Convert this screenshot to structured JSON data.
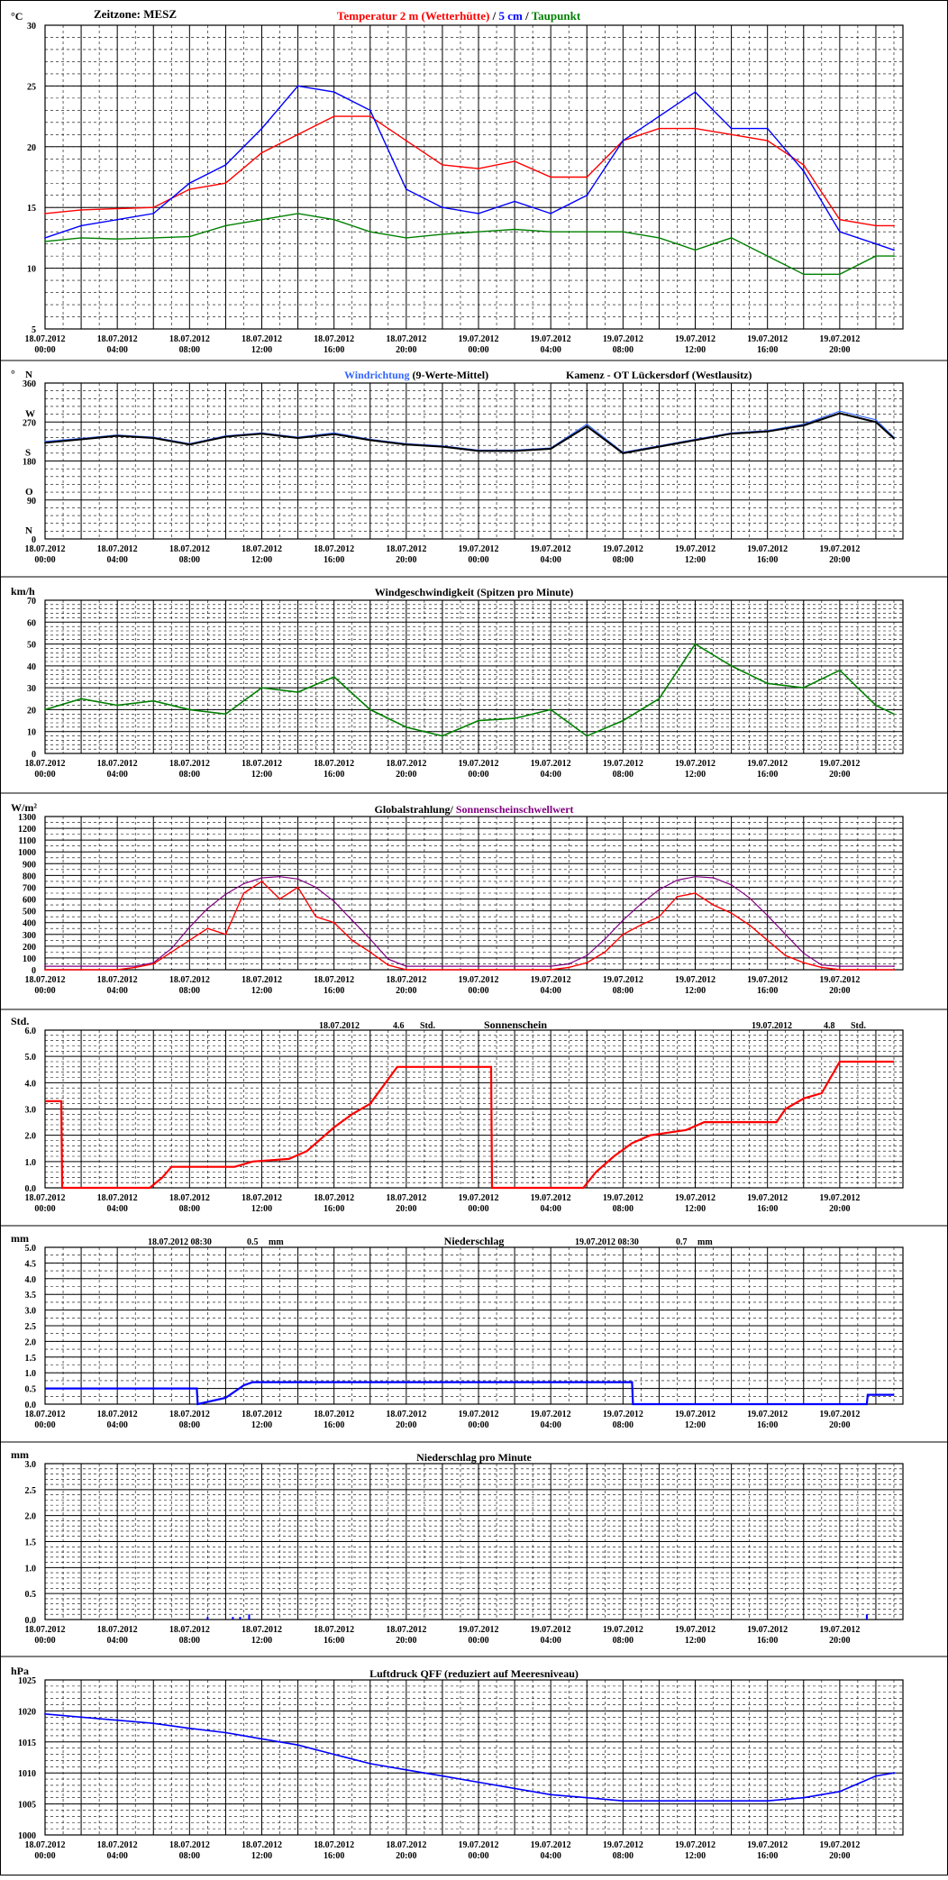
{
  "xticks": [
    [
      "18.07.2012",
      "00:00"
    ],
    [
      "18.07.2012",
      "04:00"
    ],
    [
      "18.07.2012",
      "08:00"
    ],
    [
      "18.07.2012",
      "12:00"
    ],
    [
      "18.07.2012",
      "16:00"
    ],
    [
      "18.07.2012",
      "20:00"
    ],
    [
      "19.07.2012",
      "00:00"
    ],
    [
      "19.07.2012",
      "04:00"
    ],
    [
      "19.07.2012",
      "08:00"
    ],
    [
      "19.07.2012",
      "12:00"
    ],
    [
      "19.07.2012",
      "16:00"
    ],
    [
      "19.07.2012",
      "20:00"
    ]
  ],
  "colors": {
    "temp": "#ff0000",
    "soil": "#0000ff",
    "dew": "#008000",
    "winddir": "#3366ff",
    "winddir_mean": "#000000",
    "wind": "#008000",
    "rad": "#ff0000",
    "threshold": "#800080",
    "sun": "#ff0000",
    "rain": "#0000ff",
    "pressure": "#0000ff"
  },
  "chart_data": [
    {
      "id": "temperature",
      "type": "line",
      "ylabel": "°C",
      "ylim": [
        5,
        30
      ],
      "yticks": [
        "5",
        "10",
        "15",
        "20",
        "25",
        "30"
      ],
      "header": {
        "zone": "Zeitzone: MESZ",
        "s1": "Temperatur 2 m (Wetterhütte)",
        "sep1": " / ",
        "s2": "5 cm",
        "sep2": " / ",
        "s3": "Taupunkt"
      },
      "x_hours": [
        0,
        2,
        4,
        6,
        8,
        10,
        12,
        14,
        16,
        18,
        20,
        22,
        24,
        26,
        28,
        30,
        32,
        34,
        36,
        38,
        40,
        42,
        44,
        46,
        47
      ],
      "series": [
        {
          "name": "Temperatur 2 m (Wetterhütte)",
          "values": [
            14.5,
            14.8,
            14.9,
            15.0,
            16.5,
            17.0,
            19.5,
            21.0,
            22.5,
            22.5,
            20.5,
            18.5,
            18.2,
            18.8,
            17.5,
            17.5,
            20.5,
            21.5,
            21.5,
            21.0,
            20.5,
            18.5,
            14.0,
            13.5,
            13.5
          ]
        },
        {
          "name": "5 cm",
          "values": [
            12.5,
            13.5,
            14.0,
            14.5,
            17.0,
            18.5,
            21.5,
            25.0,
            24.5,
            23.0,
            16.5,
            15.0,
            14.5,
            15.5,
            14.5,
            16.0,
            20.5,
            22.5,
            24.5,
            21.5,
            21.5,
            18.0,
            13.0,
            12.0,
            11.5
          ]
        },
        {
          "name": "Taupunkt",
          "values": [
            12.2,
            12.5,
            12.4,
            12.5,
            12.6,
            13.5,
            14.0,
            14.5,
            14.0,
            13.0,
            12.5,
            12.8,
            13.0,
            13.2,
            13.0,
            13.0,
            13.0,
            12.5,
            11.5,
            12.5,
            11.0,
            9.5,
            9.5,
            11.0,
            11.0
          ]
        }
      ]
    },
    {
      "id": "winddir",
      "type": "line",
      "title_parts": [
        "Windrichtung",
        " (9-Werte-Mittel)"
      ],
      "station": "Kamenz - OT Lückersdorf (Westlausitz)",
      "ylabel": "°",
      "ylim": [
        0,
        360
      ],
      "yticks": [
        "0",
        "90",
        "180",
        "270",
        "360"
      ],
      "compass": [
        "N",
        "O",
        "S",
        "W",
        "N"
      ],
      "x_hours": [
        0,
        2,
        4,
        6,
        8,
        10,
        12,
        14,
        16,
        18,
        20,
        22,
        24,
        26,
        28,
        30,
        32,
        34,
        36,
        38,
        40,
        42,
        44,
        46,
        47
      ],
      "series": [
        {
          "name": "Windrichtung",
          "values": [
            225,
            232,
            240,
            235,
            220,
            238,
            245,
            235,
            245,
            230,
            220,
            215,
            205,
            205,
            210,
            265,
            200,
            215,
            230,
            245,
            250,
            265,
            295,
            275,
            235
          ]
        },
        {
          "name": "9-Werte-Mittel",
          "values": [
            222,
            230,
            238,
            233,
            218,
            236,
            243,
            233,
            242,
            228,
            218,
            213,
            203,
            203,
            208,
            260,
            198,
            213,
            228,
            243,
            248,
            262,
            290,
            270,
            232
          ]
        }
      ]
    },
    {
      "id": "windspeed",
      "type": "line",
      "title": "Windgeschwindigkeit (Spitzen pro Minute)",
      "ylabel": "km/h",
      "ylim": [
        0,
        70
      ],
      "yticks": [
        "0",
        "10",
        "20",
        "30",
        "40",
        "50",
        "60",
        "70"
      ],
      "x_hours": [
        0,
        2,
        4,
        6,
        8,
        10,
        12,
        14,
        16,
        18,
        20,
        22,
        24,
        26,
        28,
        30,
        32,
        34,
        36,
        38,
        40,
        42,
        44,
        46,
        47
      ],
      "series": [
        {
          "name": "Windgeschwindigkeit",
          "values": [
            20,
            25,
            22,
            24,
            20,
            18,
            30,
            28,
            35,
            20,
            12,
            8,
            15,
            16,
            20,
            8,
            15,
            25,
            50,
            40,
            32,
            30,
            38,
            22,
            18
          ]
        }
      ]
    },
    {
      "id": "radiation",
      "type": "line",
      "title_parts": [
        "Globalstrahlung/ ",
        "Sonnenscheinschwellwert"
      ],
      "ylabel": "W/m²",
      "ylim": [
        0,
        1300
      ],
      "yticks": [
        "0",
        "100",
        "200",
        "300",
        "400",
        "500",
        "600",
        "700",
        "800",
        "900",
        "1000",
        "1100",
        "1200",
        "1300"
      ],
      "x_hours": [
        0,
        2,
        4,
        5,
        6,
        7,
        8,
        9,
        10,
        11,
        12,
        13,
        14,
        15,
        16,
        17,
        18,
        19,
        20,
        22,
        24,
        26,
        28,
        29,
        30,
        31,
        32,
        33,
        34,
        35,
        36,
        37,
        38,
        39,
        40,
        41,
        42,
        43,
        44,
        46,
        47
      ],
      "series": [
        {
          "name": "Globalstrahlung",
          "values": [
            0,
            0,
            0,
            20,
            50,
            150,
            250,
            350,
            300,
            650,
            750,
            600,
            700,
            450,
            400,
            250,
            150,
            40,
            0,
            0,
            0,
            0,
            0,
            20,
            60,
            150,
            300,
            380,
            450,
            620,
            650,
            550,
            480,
            380,
            250,
            120,
            60,
            20,
            0,
            0,
            0
          ]
        },
        {
          "name": "Sonnenscheinschwellwert",
          "values": [
            30,
            30,
            30,
            30,
            60,
            180,
            360,
            520,
            640,
            730,
            780,
            790,
            770,
            700,
            580,
            420,
            260,
            90,
            30,
            30,
            30,
            30,
            30,
            50,
            120,
            260,
            420,
            560,
            680,
            760,
            790,
            780,
            720,
            610,
            460,
            300,
            140,
            40,
            30,
            30,
            30
          ]
        }
      ]
    },
    {
      "id": "sunshine",
      "type": "line",
      "title": "Sonnenschein",
      "day1": {
        "date": "18.07.2012",
        "value": "4.6",
        "unit": "Std."
      },
      "day2": {
        "date": "19.07.2012",
        "value": "4.8",
        "unit": "Std."
      },
      "ylabel": "Std.",
      "ylim": [
        0,
        6
      ],
      "yticks": [
        "0.0",
        "1.0",
        "2.0",
        "3.0",
        "4.0",
        "5.0",
        "6.0"
      ],
      "x_hours": [
        0,
        0.9,
        0.95,
        5.8,
        6.5,
        7,
        10.5,
        11.5,
        13.5,
        14.5,
        16,
        17,
        18,
        19.5,
        24.7,
        24.75,
        29.8,
        30.5,
        31.5,
        32.5,
        33.5,
        35.5,
        36.5,
        40.5,
        41,
        42,
        43,
        44,
        46,
        47
      ],
      "series": [
        {
          "name": "Sonnenschein",
          "values": [
            3.3,
            3.3,
            0,
            0,
            0.4,
            0.8,
            0.8,
            1.0,
            1.1,
            1.4,
            2.3,
            2.8,
            3.2,
            4.6,
            4.6,
            0,
            0,
            0.6,
            1.2,
            1.7,
            2.0,
            2.2,
            2.5,
            2.5,
            3.0,
            3.4,
            3.6,
            4.8,
            4.8,
            4.8
          ]
        }
      ]
    },
    {
      "id": "precip",
      "type": "line",
      "title": "Niederschlag",
      "day1": {
        "date": "18.07.2012 08:30",
        "value": "0.5",
        "unit": "mm"
      },
      "day2": {
        "date": "19.07.2012 08:30",
        "value": "0.7",
        "unit": "mm"
      },
      "ylabel": "mm",
      "ylim": [
        0,
        5
      ],
      "yticks": [
        "0.0",
        "0.5",
        "1.0",
        "1.5",
        "2.0",
        "2.5",
        "3.0",
        "3.5",
        "4.0",
        "4.5",
        "5.0"
      ],
      "x_hours": [
        0,
        8.4,
        8.45,
        10,
        10.5,
        11,
        11.5,
        32.5,
        32.55,
        45.5,
        45.55,
        47
      ],
      "series": [
        {
          "name": "Niederschlag",
          "values": [
            0.5,
            0.5,
            0,
            0.2,
            0.4,
            0.6,
            0.7,
            0.7,
            0,
            0,
            0.3,
            0.3
          ]
        }
      ]
    },
    {
      "id": "precip_min",
      "type": "bar",
      "title": "Niederschlag pro Minute",
      "ylabel": "mm",
      "ylim": [
        0,
        3
      ],
      "yticks": [
        "0.0",
        "0.5",
        "1.0",
        "1.5",
        "2.0",
        "2.5",
        "3.0"
      ],
      "x_hours": [
        9,
        10.4,
        10.8,
        11.3,
        45.5
      ],
      "series": [
        {
          "name": "Niederschlag pro Minute",
          "values": [
            0.05,
            0.05,
            0.05,
            0.1,
            0.1
          ]
        }
      ]
    },
    {
      "id": "pressure",
      "type": "line",
      "title": "Luftdruck QFF (reduziert auf Meeresniveau)",
      "ylabel": "hPa",
      "ylim": [
        1000,
        1025
      ],
      "yticks": [
        "1000",
        "1005",
        "1010",
        "1015",
        "1020",
        "1025"
      ],
      "x_hours": [
        0,
        2,
        4,
        6,
        8,
        10,
        12,
        14,
        16,
        18,
        20,
        22,
        24,
        26,
        28,
        30,
        32,
        34,
        36,
        38,
        40,
        42,
        44,
        46,
        47
      ],
      "series": [
        {
          "name": "Luftdruck QFF",
          "values": [
            1019.5,
            1019,
            1018.5,
            1018,
            1017.2,
            1016.5,
            1015.5,
            1014.5,
            1013,
            1011.5,
            1010.5,
            1009.5,
            1008.5,
            1007.5,
            1006.5,
            1006,
            1005.5,
            1005.5,
            1005.5,
            1005.5,
            1005.5,
            1006,
            1007,
            1009.5,
            1010
          ]
        }
      ]
    }
  ]
}
